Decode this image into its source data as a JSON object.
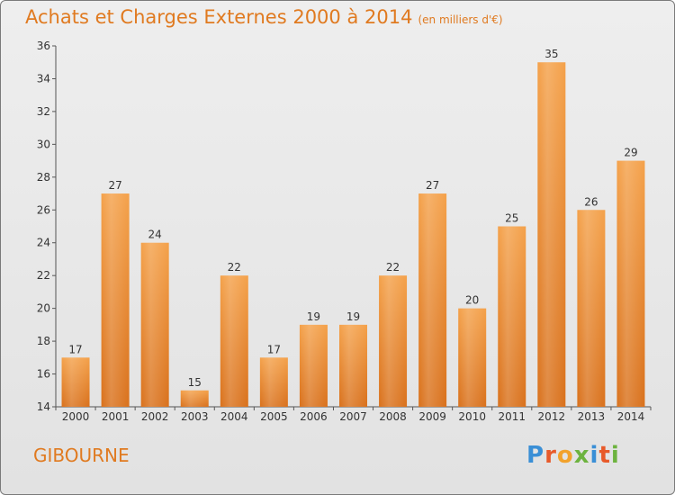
{
  "header": {
    "title": "Achats et Charges Externes 2000 à 2014",
    "unit": "(en milliers d'€)"
  },
  "footer": {
    "town": "GIBOURNE",
    "logo": "Proxiti",
    "logo_letters": [
      {
        "ch": "P",
        "color": "#3a8fd6"
      },
      {
        "ch": "r",
        "color": "#e85a2a"
      },
      {
        "ch": "o",
        "color": "#f2a22c"
      },
      {
        "ch": "x",
        "color": "#6db33f"
      },
      {
        "ch": "i",
        "color": "#3a8fd6"
      },
      {
        "ch": "t",
        "color": "#e85a2a"
      },
      {
        "ch": "i",
        "color": "#6db33f"
      }
    ]
  },
  "chart_data": {
    "type": "bar",
    "title": "Achats et Charges Externes 2000 à 2014",
    "categories": [
      "2000",
      "2001",
      "2002",
      "2003",
      "2004",
      "2005",
      "2006",
      "2007",
      "2008",
      "2009",
      "2010",
      "2011",
      "2012",
      "2013",
      "2014"
    ],
    "values": [
      17,
      27,
      24,
      15,
      22,
      17,
      19,
      19,
      22,
      27,
      20,
      25,
      35,
      26,
      29
    ],
    "ylim": [
      14,
      36
    ],
    "yticks": [
      14,
      16,
      18,
      20,
      22,
      24,
      26,
      28,
      30,
      32,
      34,
      36
    ],
    "grid": false,
    "bar_color_top": "#f4a14a",
    "bar_color_bottom": "#d9711c"
  }
}
